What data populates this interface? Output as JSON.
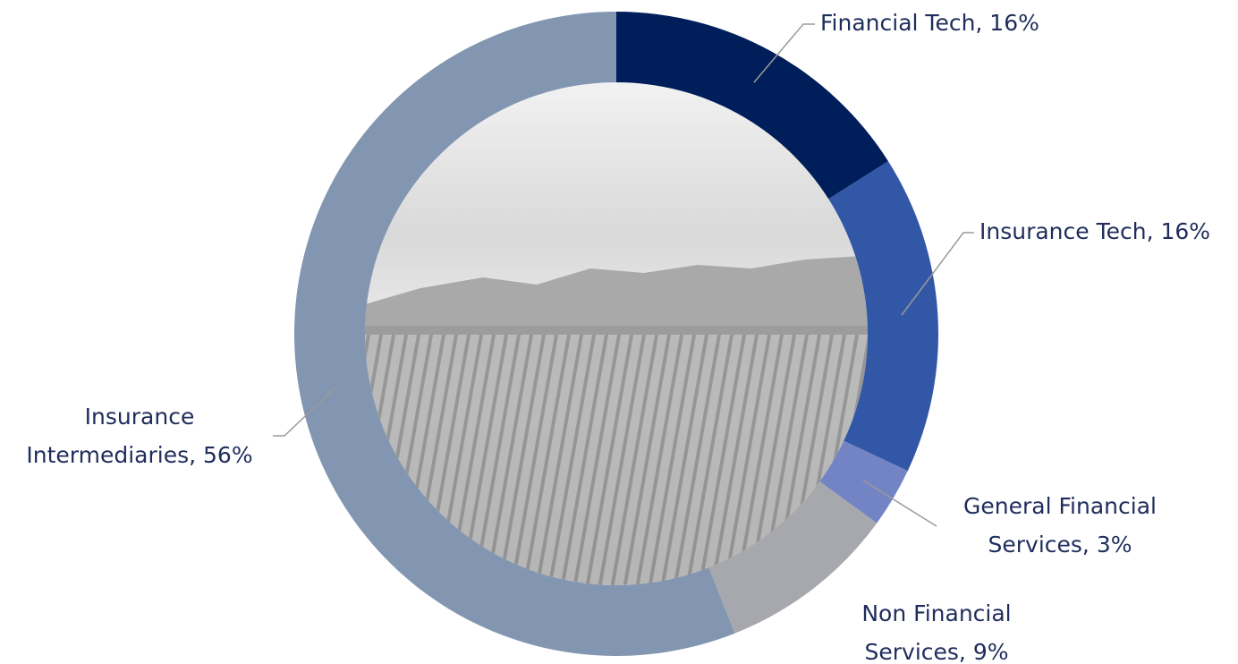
{
  "chart_data": {
    "type": "donut",
    "values": [
      16,
      16,
      3,
      9,
      56
    ],
    "value_labels": [
      [
        "Financial Tech, 16%"
      ],
      [
        "Insurance Tech, 16%"
      ],
      [
        "General Financial",
        "Services, 3%"
      ],
      [
        "Non Financial",
        "Services, 9%"
      ],
      [
        "Insurance",
        "Intermediaries, 56%"
      ]
    ],
    "colors": [
      "#001e5a",
      "#3257a6",
      "#7384c4",
      "#a6a8ad",
      "#8396b1"
    ]
  }
}
